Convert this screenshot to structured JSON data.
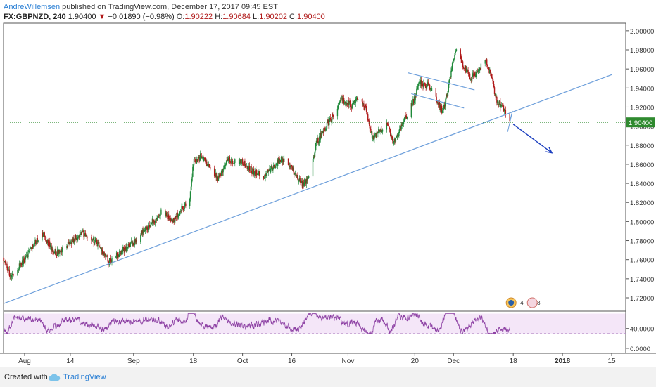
{
  "header": {
    "author": "AndreWillemsen",
    "published": " published on TradingView.com, December 17, 2017 09:45 EST",
    "symbol": "FX:GBPNZD, 240",
    "last": "1.90400",
    "change_arrow": "▼",
    "change": "−0.01890 (−0.98%)",
    "o_label": "O:",
    "o_value": "1.90222",
    "h_label": "H:",
    "h_value": "1.90684",
    "l_label": "L:",
    "l_value": "1.90202",
    "c_label": "C:",
    "c_value": "1.90400"
  },
  "footer": {
    "created_with": "Created with",
    "brand": "TradingView",
    "icon": "tradingview-cloud-icon"
  },
  "colors": {
    "candle_up": "#1f8a3a",
    "candle_down": "#b01818",
    "trendline": "#6d9fdb",
    "arrow": "#1c3fbf",
    "price_line": "#2f8a2f",
    "rsi_line": "#8c3fa3",
    "rsi_band": "#f4e6f8",
    "price_label_bg": "#2f8a2f"
  },
  "chart_data": {
    "type": "candlestick",
    "symbol": "FX:GBPNZD",
    "interval": "240",
    "y_axis_ticks": [
      "2.00000",
      "1.98000",
      "1.96000",
      "1.94000",
      "1.92000",
      "1.90000",
      "1.88000",
      "1.86000",
      "1.84000",
      "1.82000",
      "1.80000",
      "1.78000",
      "1.76000",
      "1.74000",
      "1.72000"
    ],
    "ylim": [
      1.706,
      2.008
    ],
    "last_price_label": "1.90400",
    "x_axis_labels": [
      "Aug",
      "14",
      "Sep",
      "18",
      "Oct",
      "16",
      "Nov",
      "20",
      "Dec",
      "18",
      "2018",
      "15"
    ],
    "xlim": [
      "2017-07-26",
      "2018-01-19"
    ],
    "x_label_dates": [
      "2017-08-01",
      "2017-08-14",
      "2017-09-01",
      "2017-09-18",
      "2017-10-02",
      "2017-10-16",
      "2017-11-01",
      "2017-11-20",
      "2017-12-01",
      "2017-12-18",
      "2018-01-01",
      "2018-01-15"
    ],
    "price_path": [
      [
        "2017-07-26",
        1.762
      ],
      [
        "2017-07-28",
        1.742
      ],
      [
        "2017-08-01",
        1.76
      ],
      [
        "2017-08-04",
        1.778
      ],
      [
        "2017-08-06",
        1.788
      ],
      [
        "2017-08-09",
        1.77
      ],
      [
        "2017-08-11",
        1.766
      ],
      [
        "2017-08-14",
        1.778
      ],
      [
        "2017-08-17",
        1.788
      ],
      [
        "2017-08-21",
        1.78
      ],
      [
        "2017-08-23",
        1.77
      ],
      [
        "2017-08-25",
        1.758
      ],
      [
        "2017-08-29",
        1.77
      ],
      [
        "2017-09-01",
        1.778
      ],
      [
        "2017-09-04",
        1.79
      ],
      [
        "2017-09-07",
        1.802
      ],
      [
        "2017-09-09",
        1.81
      ],
      [
        "2017-09-12",
        1.8
      ],
      [
        "2017-09-14",
        1.81
      ],
      [
        "2017-09-17",
        1.822
      ],
      [
        "2017-09-18",
        1.862
      ],
      [
        "2017-09-20",
        1.868
      ],
      [
        "2017-09-23",
        1.856
      ],
      [
        "2017-09-25",
        1.845
      ],
      [
        "2017-09-28",
        1.865
      ],
      [
        "2017-10-02",
        1.862
      ],
      [
        "2017-10-05",
        1.852
      ],
      [
        "2017-10-08",
        1.848
      ],
      [
        "2017-10-11",
        1.858
      ],
      [
        "2017-10-13",
        1.866
      ],
      [
        "2017-10-16",
        1.857
      ],
      [
        "2017-10-19",
        1.838
      ],
      [
        "2017-10-21",
        1.848
      ],
      [
        "2017-10-23",
        1.882
      ],
      [
        "2017-10-26",
        1.902
      ],
      [
        "2017-10-28",
        1.912
      ],
      [
        "2017-10-30",
        1.928
      ],
      [
        "2017-11-02",
        1.922
      ],
      [
        "2017-11-04",
        1.928
      ],
      [
        "2017-11-06",
        1.918
      ],
      [
        "2017-11-08",
        1.888
      ],
      [
        "2017-11-12",
        1.902
      ],
      [
        "2017-11-14",
        1.882
      ],
      [
        "2017-11-16",
        1.898
      ],
      [
        "2017-11-18",
        1.912
      ],
      [
        "2017-11-20",
        1.93
      ],
      [
        "2017-11-21",
        1.946
      ],
      [
        "2017-11-24",
        1.942
      ],
      [
        "2017-11-26",
        1.93
      ],
      [
        "2017-11-28",
        1.914
      ],
      [
        "2017-11-30",
        1.95
      ],
      [
        "2017-12-01",
        1.972
      ],
      [
        "2017-12-02",
        1.98
      ],
      [
        "2017-12-04",
        1.962
      ],
      [
        "2017-12-06",
        1.95
      ],
      [
        "2017-12-08",
        1.958
      ],
      [
        "2017-12-10",
        1.972
      ],
      [
        "2017-12-12",
        1.948
      ],
      [
        "2017-12-13",
        1.928
      ],
      [
        "2017-12-15",
        1.92
      ],
      [
        "2017-12-17",
        1.904
      ]
    ],
    "candle_seed": 9,
    "trendlines": [
      {
        "name": "rising support",
        "from": [
          "2017-07-26",
          1.714
        ],
        "to": [
          "2018-01-15",
          1.954
        ]
      },
      {
        "name": "flag upper",
        "from": [
          "2017-11-18",
          1.956
        ],
        "to": [
          "2017-12-07",
          1.938
        ]
      },
      {
        "name": "flag lower",
        "from": [
          "2017-11-19",
          1.934
        ],
        "to": [
          "2017-12-04",
          1.919
        ]
      }
    ],
    "projection_arrow": {
      "from": [
        "2017-12-18",
        1.902
      ],
      "to": [
        "2017-12-29",
        1.872
      ]
    },
    "price_line": 1.904,
    "rsi": {
      "ticks": [
        "40.0000",
        "0.0000"
      ],
      "ylim": [
        -10,
        75
      ],
      "band": [
        30,
        70
      ],
      "dashed_level": 30
    },
    "event_markers": [
      "4",
      "3"
    ]
  }
}
